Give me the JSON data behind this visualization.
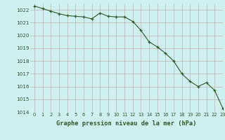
{
  "x": [
    0,
    1,
    2,
    3,
    4,
    5,
    6,
    7,
    8,
    9,
    10,
    11,
    12,
    13,
    14,
    15,
    16,
    17,
    18,
    19,
    20,
    21,
    22,
    23
  ],
  "y": [
    1022.3,
    1022.1,
    1021.9,
    1021.7,
    1021.55,
    1021.5,
    1021.45,
    1021.3,
    1021.75,
    1021.5,
    1021.45,
    1021.45,
    1021.1,
    1020.4,
    1019.5,
    1019.1,
    1018.6,
    1018.0,
    1017.0,
    1016.4,
    1016.0,
    1016.3,
    1015.7,
    1014.3
  ],
  "line_color": "#2d5a27",
  "marker_color": "#2d5a27",
  "bg_color": "#cff0f0",
  "grid_color": "#b8b8b8",
  "grid_minor_color": "#e8c8c8",
  "xlabel": "Graphe pression niveau de la mer (hPa)",
  "xlabel_color": "#2d5a27",
  "tick_color": "#2d5a27",
  "ylim": [
    1014,
    1022.5
  ],
  "xlim": [
    -0.5,
    23
  ],
  "yticks": [
    1014,
    1015,
    1016,
    1017,
    1018,
    1019,
    1020,
    1021,
    1022
  ],
  "xticks": [
    0,
    1,
    2,
    3,
    4,
    5,
    6,
    7,
    8,
    9,
    10,
    11,
    12,
    13,
    14,
    15,
    16,
    17,
    18,
    19,
    20,
    21,
    22,
    23
  ]
}
